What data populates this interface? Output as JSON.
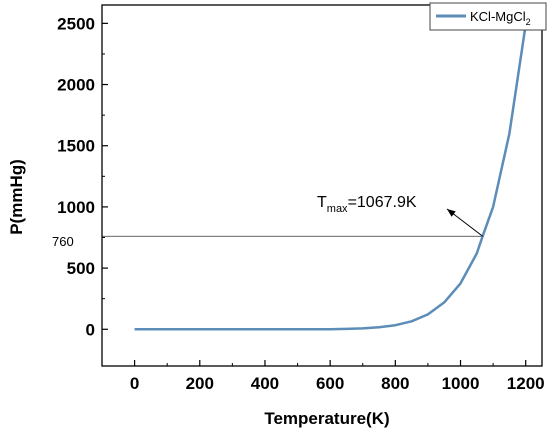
{
  "chart_data": {
    "type": "line",
    "title": "",
    "xlabel": "Temperature(K)",
    "ylabel": "P(mmHg)",
    "xlim": [
      -100,
      1250
    ],
    "ylim": [
      -300,
      2650
    ],
    "x_ticks": [
      0,
      200,
      400,
      600,
      800,
      1000,
      1200
    ],
    "y_ticks": [
      0,
      500,
      1000,
      1500,
      2000,
      2500
    ],
    "x_tick_labels": [
      "0",
      "200",
      "400",
      "600",
      "800",
      "1000",
      "1200"
    ],
    "y_tick_labels": [
      "0",
      "500",
      "1000",
      "1500",
      "2000",
      "2500"
    ],
    "grid": false,
    "legend_position": "top-right",
    "line_color": "#5b8db8",
    "series": [
      {
        "name": "KCl-MgCl",
        "name_subscript": "2",
        "x": [
          0,
          100,
          200,
          300,
          400,
          500,
          600,
          650,
          700,
          750,
          800,
          850,
          900,
          950,
          1000,
          1050,
          1067.9,
          1100,
          1150,
          1200
        ],
        "y": [
          0,
          0,
          0,
          0,
          0,
          0,
          1,
          3,
          7,
          16,
          33,
          65,
          122,
          220,
          375,
          620,
          760,
          1000,
          1600,
          2490
        ]
      }
    ],
    "annotations": {
      "ref_line_label": "760",
      "ref_line_value": 760,
      "tmax_prefix": "T",
      "tmax_subscript": "max",
      "tmax_suffix": "=1067.9K",
      "tmax_x": 1067.9,
      "tmax_y": 760
    }
  }
}
